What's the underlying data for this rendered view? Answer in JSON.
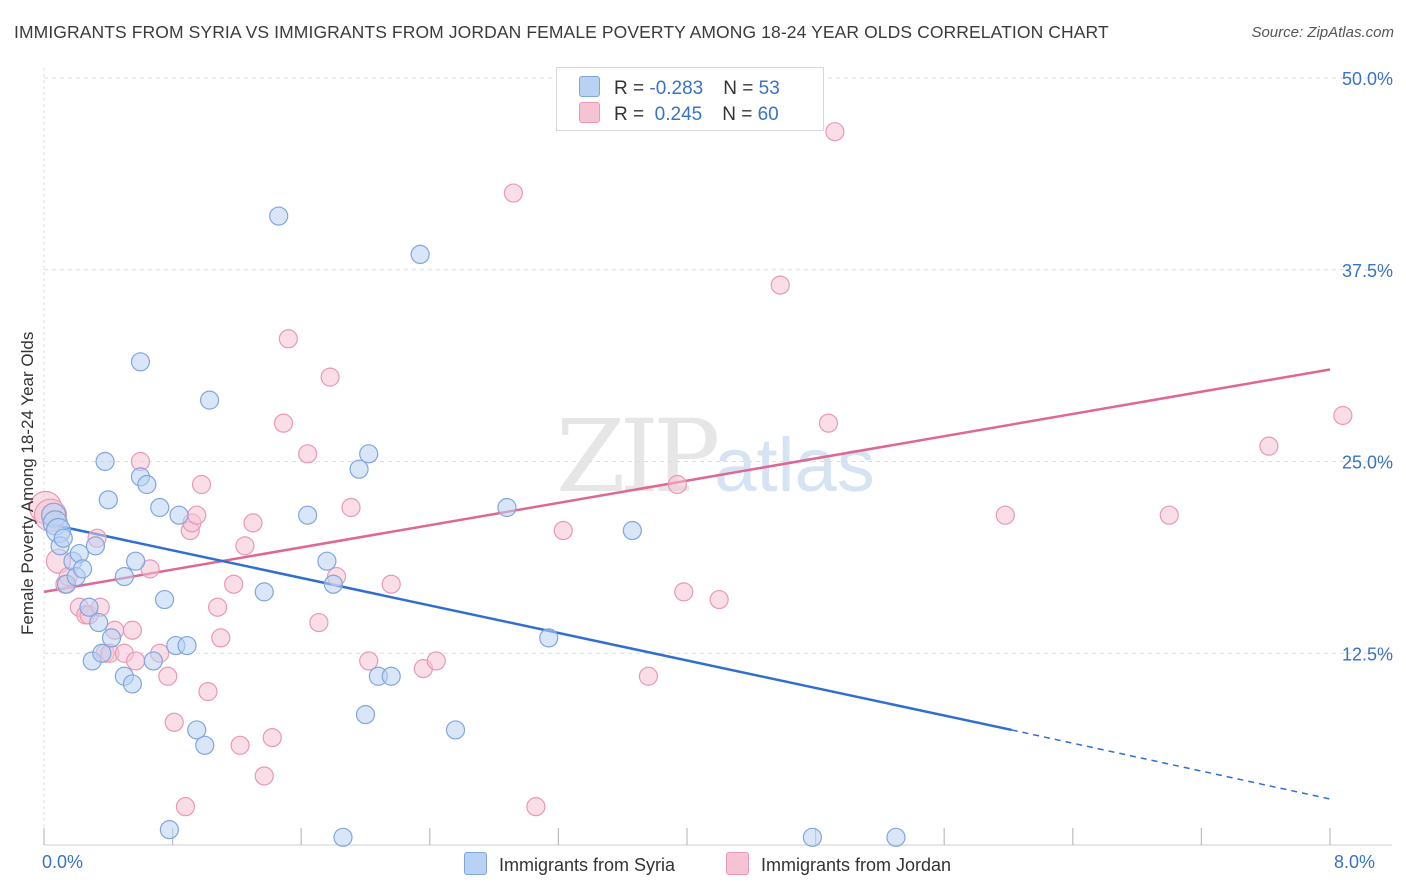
{
  "title": "IMMIGRANTS FROM SYRIA VS IMMIGRANTS FROM JORDAN FEMALE POVERTY AMONG 18-24 YEAR OLDS CORRELATION CHART",
  "source": "Source: ZipAtlas.com",
  "watermark": {
    "zip": "ZIP",
    "atlas": "atlas"
  },
  "legend": {
    "rows": [
      {
        "r_label": "R = ",
        "r_value": "-0.283",
        "n_label": "N = ",
        "n_value": "53"
      },
      {
        "r_label": "R = ",
        "r_value": " 0.245",
        "n_label": "N = ",
        "n_value": "60"
      }
    ]
  },
  "series_labels": [
    "Immigrants from Syria",
    "Immigrants from Jordan"
  ],
  "colors": {
    "syria_fill": "#b9d1f2",
    "syria_stroke": "#7fa6df",
    "syria_line": "#2f6fd0",
    "jordan_fill": "#f6c3d3",
    "jordan_stroke": "#ea98b3",
    "jordan_line": "#e06791",
    "grid": "#dcdcdc",
    "axis_text": "#3a72c4"
  },
  "chart_data": {
    "type": "scatter",
    "title": "IMMIGRANTS FROM SYRIA VS IMMIGRANTS FROM JORDAN FEMALE POVERTY AMONG 18-24 YEAR OLDS CORRELATION CHART",
    "xlabel": "",
    "ylabel": "Female Poverty Among 18-24 Year Olds",
    "xlim": [
      0,
      8
    ],
    "ylim": [
      0,
      50
    ],
    "x_tick_labels": [
      "0.0%",
      "8.0%"
    ],
    "y_ticks": [
      12.5,
      25.0,
      37.5,
      50.0
    ],
    "y_tick_labels": [
      "12.5%",
      "25.0%",
      "37.5%",
      "50.0%"
    ],
    "grid": true,
    "series": [
      {
        "name": "Immigrants from Syria",
        "x": [
          0.06,
          0.07,
          0.09,
          0.1,
          0.12,
          0.14,
          0.18,
          0.2,
          0.22,
          0.24,
          0.28,
          0.3,
          0.32,
          0.34,
          0.36,
          0.38,
          0.4,
          0.42,
          0.5,
          0.5,
          0.55,
          0.57,
          0.6,
          0.6,
          0.64,
          0.68,
          0.72,
          0.75,
          0.78,
          0.82,
          0.84,
          0.89,
          0.95,
          1.0,
          1.03,
          1.37,
          1.46,
          1.64,
          1.76,
          1.8,
          1.86,
          1.96,
          2.0,
          2.02,
          2.08,
          2.16,
          2.34,
          2.56,
          2.88,
          3.14,
          3.66,
          4.78,
          5.3
        ],
        "y": [
          21.5,
          21.0,
          20.5,
          19.5,
          20.0,
          17.0,
          18.5,
          17.5,
          19.0,
          18.0,
          15.5,
          12.0,
          19.5,
          14.5,
          12.5,
          25.0,
          22.5,
          13.5,
          11.0,
          17.5,
          10.5,
          18.5,
          24.0,
          31.5,
          23.5,
          12.0,
          22.0,
          16.0,
          1.0,
          13.0,
          21.5,
          13.0,
          7.5,
          6.5,
          29.0,
          16.5,
          41.0,
          21.5,
          18.5,
          17.0,
          0.5,
          24.5,
          8.5,
          25.5,
          11.0,
          11.0,
          38.5,
          7.5,
          22.0,
          13.5,
          20.5,
          0.5,
          0.5
        ]
      },
      {
        "name": "Immigrants from Jordan",
        "x": [
          0.01,
          0.04,
          0.09,
          0.13,
          0.15,
          0.22,
          0.26,
          0.28,
          0.33,
          0.35,
          0.38,
          0.41,
          0.44,
          0.5,
          0.55,
          0.57,
          0.6,
          0.66,
          0.72,
          0.77,
          0.81,
          0.88,
          0.91,
          0.92,
          0.95,
          0.98,
          1.02,
          1.08,
          1.1,
          1.18,
          1.22,
          1.25,
          1.3,
          1.37,
          1.42,
          1.49,
          1.52,
          1.64,
          1.71,
          1.78,
          1.82,
          1.91,
          2.02,
          2.16,
          2.36,
          2.44,
          2.92,
          3.06,
          3.23,
          3.76,
          3.94,
          3.98,
          4.2,
          4.58,
          4.88,
          4.92,
          5.98,
          7.0,
          7.62,
          8.08
        ],
        "y": [
          22.0,
          21.5,
          18.5,
          17.0,
          17.5,
          15.5,
          15.0,
          15.0,
          20.0,
          15.5,
          12.5,
          12.5,
          14.0,
          12.5,
          14.0,
          12.0,
          25.0,
          18.0,
          12.5,
          11.0,
          8.0,
          2.5,
          20.5,
          21.0,
          21.5,
          23.5,
          10.0,
          15.5,
          13.5,
          17.0,
          6.5,
          19.5,
          21.0,
          4.5,
          7.0,
          27.5,
          33.0,
          25.5,
          14.5,
          30.5,
          17.5,
          22.0,
          12.0,
          17.0,
          11.5,
          12.0,
          42.5,
          2.5,
          20.5,
          11.0,
          23.5,
          16.5,
          16.0,
          36.5,
          27.5,
          46.5,
          21.5,
          21.5,
          26.0,
          28.0
        ]
      }
    ],
    "trend_lines": [
      {
        "name": "Immigrants from Syria",
        "x": [
          0,
          6.02
        ],
        "y": [
          21.0,
          7.5
        ],
        "dashed_extension_to": [
          8.0,
          3.0
        ]
      },
      {
        "name": "Immigrants from Jordan",
        "x": [
          0,
          8.0
        ],
        "y": [
          16.5,
          31.0
        ]
      }
    ]
  }
}
